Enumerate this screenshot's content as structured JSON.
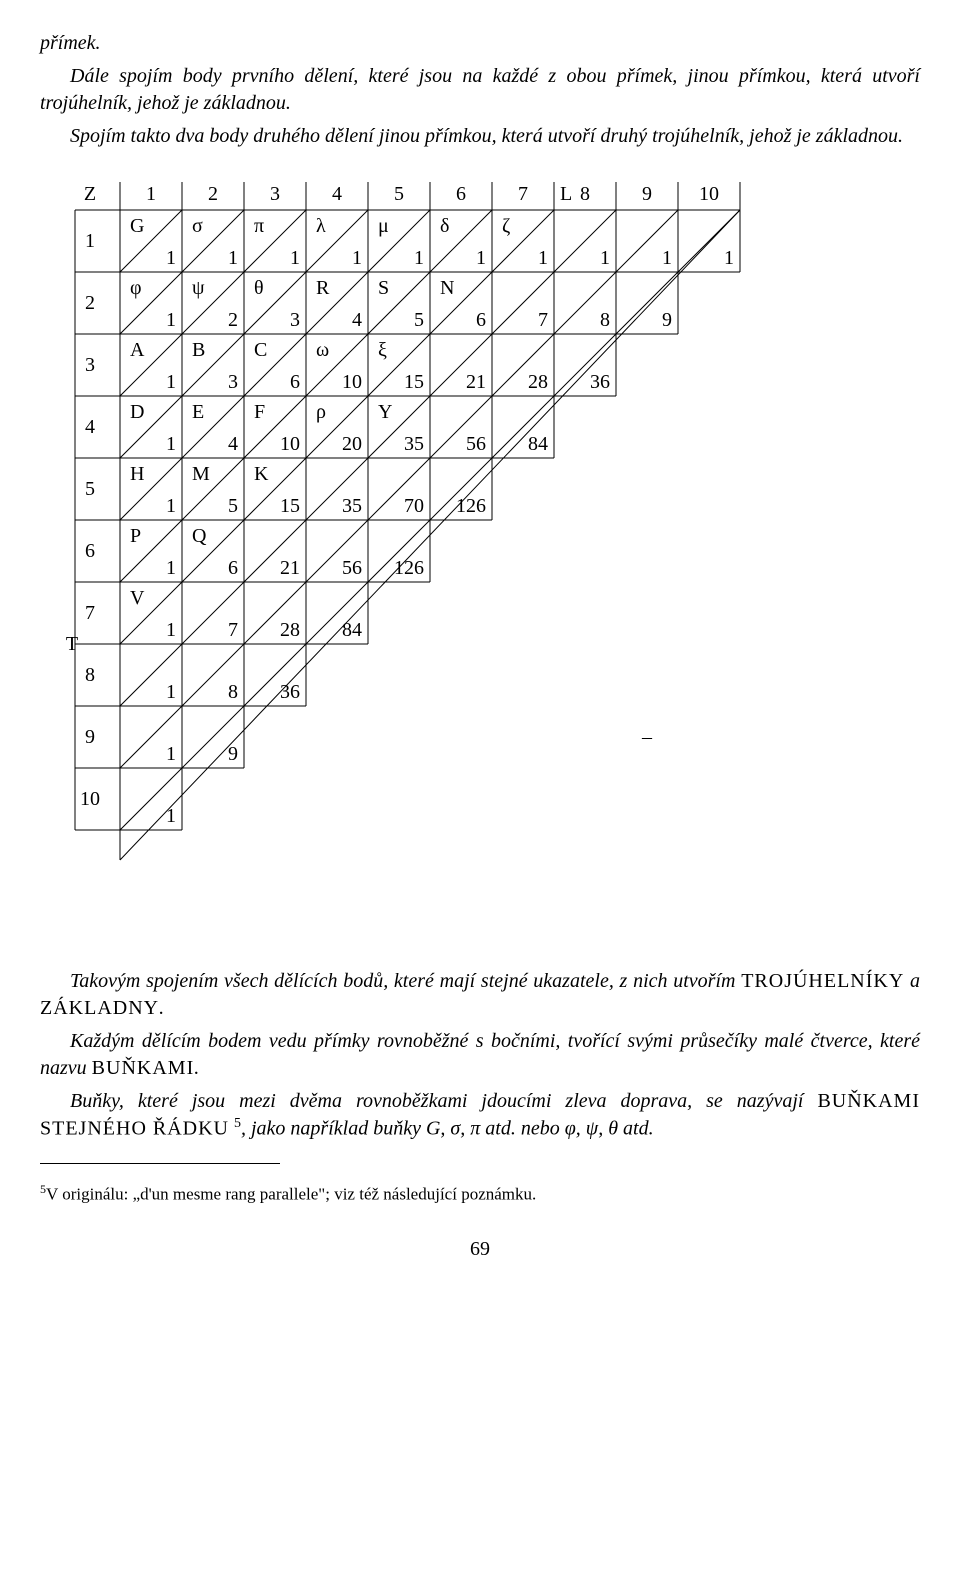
{
  "p0": "přímek.",
  "p1": "Dále spojím body prvního dělení, které jsou na každé z obou přímek, jinou přímkou, která utvoří trojúhelník, jehož je základnou.",
  "p2": "Spojím takto dva body druhého dělení jinou přímkou, která utvoří druhý trojúhelník, jehož je základnou.",
  "p3a": "Takovým spojením všech dělících bodů, které mají stejné ukazatele, z nich utvořím ",
  "p3b": "TROJÚHELNÍKY",
  "p3c": " a ",
  "p3d": "ZÁKLADNY",
  "p3e": ".",
  "p4a": "Každým dělícím bodem vedu přímky rovnoběžné s bočními, tvořící svými průsečíky malé čtverce, které nazvu ",
  "p4b": "BUŇKAMI",
  "p4c": ".",
  "p5a": "Buňky, které jsou mezi dvěma rovnoběžkami jdoucími zleva doprava, se nazývají ",
  "p5b": "BUŇKAMI STEJNÉHO ŘÁDKU",
  "p5c": " ",
  "p5d": "5",
  "p5e": ", jako například buňky G, σ, π atd. nebo φ, ψ, θ atd.",
  "footnote_mark": "5",
  "footnote_text": "V originálu: „d'un mesme rang parallele\"; viz též následující poznámku.",
  "pagenum": "69",
  "diagram": {
    "cell": 62,
    "ox": 80,
    "oy": 30,
    "rows": 10,
    "col_headers": [
      "1",
      "2",
      "3",
      "4",
      "5",
      "6",
      "7",
      "8",
      "9",
      "10"
    ],
    "row_headers": [
      "1",
      "2",
      "3",
      "4",
      "5",
      "6",
      "7",
      "8",
      "9",
      "10"
    ],
    "top_left_label": "Z",
    "top_right_label": "L",
    "mid_left_label": "T",
    "cells": [
      [
        {
          "tl": "G",
          "br": "1"
        },
        {
          "tl": "σ",
          "br": "1"
        },
        {
          "tl": "π",
          "br": "1"
        },
        {
          "tl": "λ",
          "br": "1"
        },
        {
          "tl": "μ",
          "br": "1"
        },
        {
          "tl": "δ",
          "br": "1"
        },
        {
          "tl": "ζ",
          "br": "1"
        },
        {
          "tl": "",
          "br": "1"
        },
        {
          "tl": "",
          "br": "1"
        },
        {
          "tl": "",
          "br": "1"
        }
      ],
      [
        {
          "tl": "φ",
          "br": "1"
        },
        {
          "tl": "ψ",
          "br": "2"
        },
        {
          "tl": "θ",
          "br": "3"
        },
        {
          "tl": "R",
          "br": "4"
        },
        {
          "tl": "S",
          "br": "5"
        },
        {
          "tl": "N",
          "br": "6"
        },
        {
          "tl": "",
          "br": "7"
        },
        {
          "tl": "",
          "br": "8"
        },
        {
          "tl": "",
          "br": "9"
        }
      ],
      [
        {
          "tl": "A",
          "br": "1"
        },
        {
          "tl": "B",
          "br": "3"
        },
        {
          "tl": "C",
          "br": "6"
        },
        {
          "tl": "ω",
          "br": "10"
        },
        {
          "tl": "ξ",
          "br": "15"
        },
        {
          "tl": "",
          "br": "21"
        },
        {
          "tl": "",
          "br": "28"
        },
        {
          "tl": "",
          "br": "36"
        }
      ],
      [
        {
          "tl": "D",
          "br": "1"
        },
        {
          "tl": "E",
          "br": "4"
        },
        {
          "tl": "F",
          "br": "10"
        },
        {
          "tl": "ρ",
          "br": "20"
        },
        {
          "tl": "Y",
          "br": "35"
        },
        {
          "tl": "",
          "br": "56"
        },
        {
          "tl": "",
          "br": "84"
        }
      ],
      [
        {
          "tl": "H",
          "br": "1"
        },
        {
          "tl": "M",
          "br": "5"
        },
        {
          "tl": "K",
          "br": "15"
        },
        {
          "tl": "",
          "br": "35"
        },
        {
          "tl": "",
          "br": "70"
        },
        {
          "tl": "",
          "br": "126"
        }
      ],
      [
        {
          "tl": "P",
          "br": "1"
        },
        {
          "tl": "Q",
          "br": "6"
        },
        {
          "tl": "",
          "br": "21"
        },
        {
          "tl": "",
          "br": "56"
        },
        {
          "tl": "",
          "br": "126"
        }
      ],
      [
        {
          "tl": "V",
          "br": "1"
        },
        {
          "tl": "",
          "br": "7"
        },
        {
          "tl": "",
          "br": "28"
        },
        {
          "tl": "",
          "br": "84"
        }
      ],
      [
        {
          "tl": "",
          "br": "1"
        },
        {
          "tl": "",
          "br": "8"
        },
        {
          "tl": "",
          "br": "36"
        }
      ],
      [
        {
          "tl": "",
          "br": "1"
        },
        {
          "tl": "",
          "br": "9"
        }
      ],
      [
        {
          "tl": "",
          "br": "1"
        }
      ]
    ],
    "dash": "–"
  }
}
